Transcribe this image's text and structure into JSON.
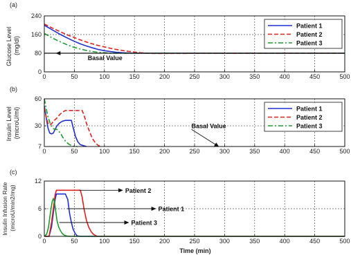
{
  "chart_data": [
    {
      "type": "line",
      "panel_label": "(a)",
      "ylabel_line1": "Glucose Level",
      "ylabel_line2": "(mg/dl)",
      "xlim": [
        0,
        500
      ],
      "ylim": [
        0,
        240
      ],
      "xticks": [
        0,
        50,
        100,
        150,
        200,
        250,
        300,
        350,
        400,
        450,
        500
      ],
      "yticks": [
        0,
        80,
        160,
        240
      ],
      "grid": true,
      "legend_position": "top-right",
      "series": [
        {
          "name": "Patient 1",
          "color": "#1f2fd6",
          "dash": "solid",
          "x": [
            0,
            10,
            20,
            30,
            40,
            50,
            60,
            70,
            80,
            90,
            100,
            110,
            120,
            130,
            140,
            150,
            500
          ],
          "y": [
            200,
            185,
            170,
            156,
            143,
            131,
            120,
            111,
            103,
            96,
            91,
            87,
            84,
            82,
            81,
            80,
            80
          ]
        },
        {
          "name": "Patient 2",
          "color": "#e0201c",
          "dash": "dashed",
          "x": [
            0,
            10,
            20,
            30,
            40,
            50,
            60,
            70,
            80,
            90,
            100,
            110,
            120,
            130,
            140,
            150,
            160,
            175,
            200,
            500
          ],
          "y": [
            205,
            192,
            180,
            168,
            157,
            147,
            137,
            128,
            120,
            113,
            107,
            101,
            96,
            92,
            88,
            85,
            82,
            79,
            79,
            80
          ]
        },
        {
          "name": "Patient 3",
          "color": "#1a9a2a",
          "dash": "dashdot",
          "x": [
            0,
            10,
            20,
            30,
            40,
            50,
            60,
            70,
            80,
            90,
            100,
            110,
            500
          ],
          "y": [
            165,
            150,
            137,
            125,
            114,
            105,
            98,
            92,
            87,
            84,
            82,
            80,
            80
          ]
        },
        {
          "name": "Basal",
          "color": "#111111",
          "dash": "solid",
          "x": [
            0,
            500
          ],
          "y": [
            80,
            80
          ]
        }
      ],
      "annotations": [
        {
          "text": "Basal Value",
          "x_from": 70,
          "y_from": 80,
          "x_to": 20,
          "y_to": 80
        }
      ]
    },
    {
      "type": "line",
      "panel_label": "(b)",
      "ylabel_line1": "Insulin Level",
      "ylabel_line2": "(microU/ml)",
      "xlim": [
        0,
        500
      ],
      "ylim": [
        7,
        60
      ],
      "xticks": [
        0,
        50,
        100,
        150,
        200,
        250,
        300,
        350,
        400,
        450,
        500
      ],
      "yticks": [
        7,
        30,
        60
      ],
      "grid": true,
      "legend_position": "top-right",
      "series": [
        {
          "name": "Patient 1",
          "color": "#1f2fd6",
          "dash": "solid",
          "x": [
            0,
            3,
            6,
            9,
            12,
            15,
            18,
            21,
            25,
            30,
            35,
            45,
            48,
            52,
            56,
            60,
            65,
            70
          ],
          "y": [
            52,
            40,
            28,
            22,
            21,
            22,
            26,
            30,
            33,
            35,
            36,
            36,
            28,
            18,
            12,
            9,
            8,
            7
          ]
        },
        {
          "name": "Patient 2",
          "color": "#e0201c",
          "dash": "dashed",
          "x": [
            0,
            3,
            6,
            9,
            12,
            15,
            20,
            25,
            30,
            35,
            40,
            45,
            50,
            55,
            60,
            63,
            66,
            70,
            75,
            80,
            85,
            90,
            95
          ],
          "y": [
            50,
            40,
            33,
            31,
            32,
            35,
            38,
            42,
            45,
            47,
            47,
            47,
            47,
            47,
            47,
            47,
            42,
            33,
            24,
            16,
            11,
            8,
            7
          ]
        },
        {
          "name": "Patient 3",
          "color": "#1a9a2a",
          "dash": "dashdot",
          "x": [
            0,
            3,
            6,
            9,
            12,
            15,
            18,
            21,
            24,
            27,
            30,
            35,
            40,
            45,
            50,
            55
          ],
          "y": [
            60,
            50,
            40,
            34,
            30,
            27,
            26,
            26,
            24,
            22,
            18,
            13,
            10,
            8,
            7,
            7
          ]
        }
      ],
      "annotations": [
        {
          "text": "Basal Value",
          "x_from": 245,
          "y_from": 26,
          "x_to": 290,
          "y_to": 7
        }
      ]
    },
    {
      "type": "line",
      "panel_label": "(c)",
      "ylabel_line1": "Insulin Infusion Rate",
      "ylabel_line2": "(microU/min2/mg)",
      "xlabel": "Time (min)",
      "xlim": [
        0,
        500
      ],
      "ylim": [
        0,
        12
      ],
      "xticks": [
        0,
        50,
        100,
        150,
        200,
        250,
        300,
        350,
        400,
        450,
        500
      ],
      "yticks": [
        0,
        6,
        12
      ],
      "grid": true,
      "series": [
        {
          "name": "Patient 1",
          "color": "#1f2fd6",
          "dash": "solid",
          "x": [
            0,
            8,
            12,
            15,
            18,
            20,
            35,
            39,
            42,
            45,
            48,
            52,
            55,
            60,
            500
          ],
          "y": [
            0,
            0,
            2,
            5,
            8,
            9.2,
            9.2,
            8,
            5,
            3,
            1.5,
            0.5,
            0.1,
            0,
            0
          ]
        },
        {
          "name": "Patient 2",
          "color": "#e0201c",
          "dash": "solid",
          "x": [
            0,
            8,
            12,
            15,
            18,
            20,
            60,
            63,
            66,
            70,
            74,
            78,
            82,
            88,
            500
          ],
          "y": [
            0,
            0,
            3,
            6,
            9,
            10,
            10,
            8.5,
            6,
            3.5,
            2,
            1,
            0.4,
            0,
            0
          ]
        },
        {
          "name": "Patient 3",
          "color": "#1a9a2a",
          "dash": "solid",
          "x": [
            0,
            4,
            7,
            10,
            13,
            15,
            17,
            19,
            21,
            24,
            27,
            30,
            34,
            38,
            42,
            500
          ],
          "y": [
            0,
            0.5,
            2,
            5,
            7.5,
            8.2,
            7.5,
            5.5,
            3.5,
            2,
            1.2,
            0.6,
            0.2,
            0.05,
            0,
            0
          ]
        }
      ],
      "annotations": [
        {
          "text": "Patient 2",
          "x_from": 58,
          "y_from": 10,
          "x_to": 130,
          "y_to": 10
        },
        {
          "text": "Patient 1",
          "x_from": 38,
          "y_from": 6,
          "x_to": 185,
          "y_to": 6
        },
        {
          "text": "Patient 3",
          "x_from": 25,
          "y_from": 3,
          "x_to": 140,
          "y_to": 3
        }
      ]
    }
  ]
}
